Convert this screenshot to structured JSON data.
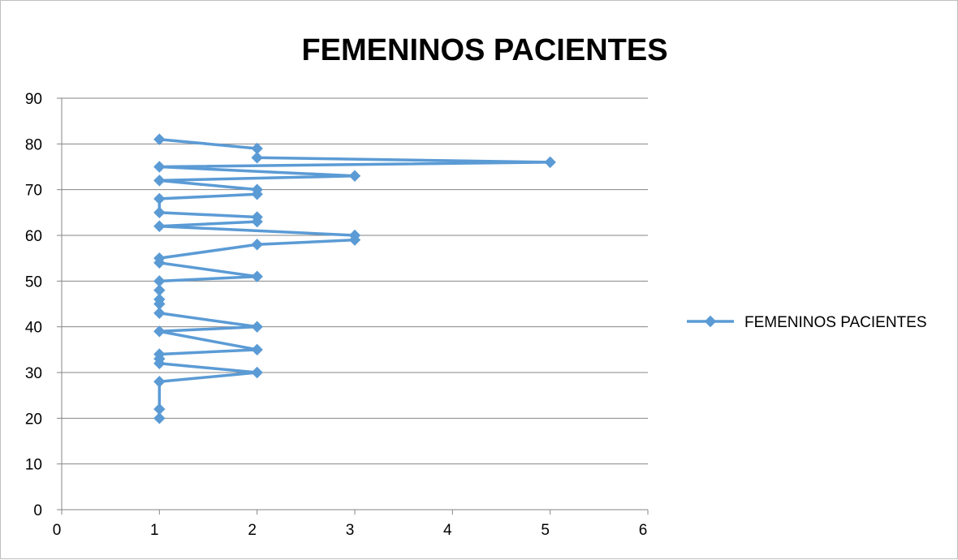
{
  "chart_data": {
    "type": "scatter",
    "title": "FEMENINOS PACIENTES",
    "xlabel": "",
    "ylabel": "",
    "xlim": [
      0,
      6
    ],
    "ylim": [
      0,
      90
    ],
    "x_ticks": [
      0,
      1,
      2,
      3,
      4,
      5,
      6
    ],
    "y_ticks": [
      0,
      10,
      20,
      30,
      40,
      50,
      60,
      70,
      80,
      90
    ],
    "grid": "horizontal",
    "legend_position": "right",
    "series": [
      {
        "name": "FEMENINOS PACIENTES",
        "color": "#5b9bd5",
        "marker": "diamond",
        "line": true,
        "points": [
          [
            1,
            20
          ],
          [
            1,
            22
          ],
          [
            1,
            28
          ],
          [
            2,
            30
          ],
          [
            1,
            32
          ],
          [
            1,
            33
          ],
          [
            1,
            34
          ],
          [
            2,
            35
          ],
          [
            1,
            39
          ],
          [
            2,
            40
          ],
          [
            1,
            43
          ],
          [
            1,
            45
          ],
          [
            1,
            46
          ],
          [
            1,
            48
          ],
          [
            1,
            50
          ],
          [
            2,
            51
          ],
          [
            1,
            54
          ],
          [
            1,
            55
          ],
          [
            2,
            58
          ],
          [
            3,
            59
          ],
          [
            3,
            60
          ],
          [
            1,
            62
          ],
          [
            2,
            63
          ],
          [
            2,
            64
          ],
          [
            1,
            65
          ],
          [
            1,
            68
          ],
          [
            2,
            69
          ],
          [
            2,
            70
          ],
          [
            1,
            72
          ],
          [
            3,
            73
          ],
          [
            1,
            75
          ],
          [
            5,
            76
          ],
          [
            2,
            77
          ],
          [
            2,
            79
          ],
          [
            1,
            81
          ]
        ]
      }
    ]
  }
}
